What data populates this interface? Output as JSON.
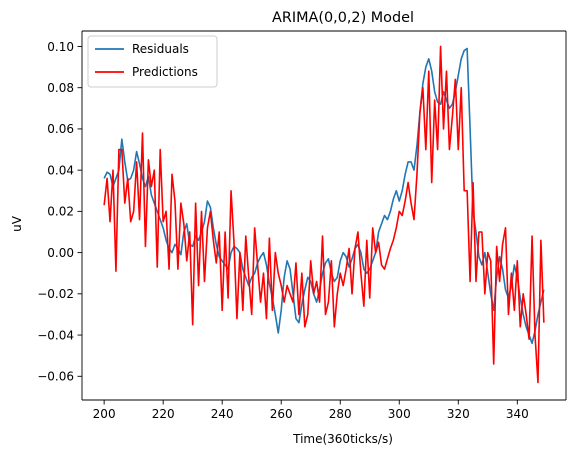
{
  "chart_data": {
    "type": "line",
    "title": "ARIMA(0,0,2) Model",
    "xlabel": "Time(360ticks/s)",
    "ylabel": "uV",
    "xlim": [
      192.5,
      356.5
    ],
    "ylim": [
      -0.0715,
      0.1075
    ],
    "xticks": [
      200,
      220,
      240,
      260,
      280,
      300,
      320,
      340
    ],
    "yticks": [
      -0.06,
      -0.04,
      -0.02,
      0.0,
      0.02,
      0.04,
      0.06,
      0.08,
      0.1
    ],
    "ytick_labels": [
      "−0.06",
      "−0.04",
      "−0.02",
      "0.00",
      "0.02",
      "0.04",
      "0.06",
      "0.08",
      "0.10"
    ],
    "grid": false,
    "legend_position": "top-left",
    "x_start": 200,
    "x_end": 349,
    "series": [
      {
        "name": "Residuals",
        "color": "#1f77b4",
        "values": [
          0.036,
          0.039,
          0.038,
          0.032,
          0.036,
          0.04,
          0.055,
          0.044,
          0.035,
          0.036,
          0.04,
          0.049,
          0.043,
          0.036,
          0.032,
          0.037,
          0.028,
          0.024,
          0.02,
          0.016,
          0.012,
          0.006,
          0.002,
          0.0,
          0.004,
          0.002,
          -0.001,
          0.01,
          0.014,
          0.004,
          0.003,
          0.008,
          0.006,
          0.01,
          0.015,
          0.025,
          0.022,
          0.012,
          0.004,
          -0.002,
          -0.004,
          -0.006,
          -0.008,
          0.0,
          0.003,
          0.002,
          0.0,
          -0.008,
          -0.012,
          -0.016,
          -0.012,
          -0.01,
          -0.005,
          -0.002,
          0.0,
          -0.006,
          -0.015,
          -0.022,
          -0.03,
          -0.039,
          -0.028,
          -0.012,
          -0.004,
          -0.008,
          -0.02,
          -0.032,
          -0.034,
          -0.025,
          -0.018,
          -0.012,
          -0.014,
          -0.02,
          -0.024,
          -0.018,
          -0.01,
          -0.005,
          -0.003,
          -0.01,
          -0.014,
          -0.012,
          -0.004,
          0.0,
          -0.002,
          -0.007,
          -0.003,
          0.002,
          0.004,
          0.0,
          -0.008,
          -0.01,
          -0.008,
          -0.004,
          0.0,
          0.01,
          0.014,
          0.018,
          0.016,
          0.02,
          0.026,
          0.03,
          0.025,
          0.03,
          0.038,
          0.044,
          0.044,
          0.04,
          0.052,
          0.068,
          0.082,
          0.09,
          0.094,
          0.088,
          0.078,
          0.073,
          0.072,
          0.078,
          0.074,
          0.07,
          0.072,
          0.078,
          0.086,
          0.094,
          0.098,
          0.099,
          0.06,
          0.02,
          0.01,
          -0.002,
          -0.006,
          0.0,
          -0.01,
          -0.02,
          -0.028,
          -0.012,
          -0.002,
          -0.008,
          -0.018,
          -0.022,
          -0.016,
          -0.006,
          -0.012,
          -0.022,
          -0.03,
          -0.036,
          -0.04,
          -0.044,
          -0.038,
          -0.03,
          -0.024,
          -0.018
        ]
      },
      {
        "name": "Predictions",
        "color": "#ff0000",
        "values": [
          0.023,
          0.036,
          0.015,
          0.04,
          -0.009,
          0.05,
          0.05,
          0.024,
          0.036,
          0.015,
          0.02,
          0.044,
          0.016,
          0.058,
          0.003,
          0.045,
          0.032,
          0.04,
          -0.007,
          0.05,
          0.015,
          0.02,
          -0.008,
          0.038,
          0.025,
          -0.008,
          0.024,
          0.014,
          -0.004,
          0.01,
          -0.035,
          0.024,
          -0.016,
          0.02,
          -0.014,
          0.012,
          0.02,
          0.006,
          -0.005,
          0.01,
          -0.028,
          0.01,
          -0.022,
          0.03,
          0.005,
          -0.032,
          0.0,
          -0.028,
          0.008,
          -0.012,
          -0.03,
          0.012,
          -0.006,
          -0.024,
          -0.01,
          -0.032,
          0.007,
          -0.028,
          0.0,
          -0.01,
          -0.016,
          -0.024,
          -0.016,
          -0.02,
          -0.024,
          -0.005,
          -0.03,
          -0.01,
          -0.036,
          -0.03,
          -0.004,
          -0.02,
          -0.014,
          -0.024,
          0.008,
          -0.03,
          -0.024,
          -0.004,
          -0.036,
          -0.02,
          -0.01,
          -0.016,
          -0.008,
          0.002,
          -0.02,
          0.002,
          0.01,
          -0.01,
          -0.026,
          0.006,
          -0.022,
          0.012,
          0.0,
          0.005,
          -0.006,
          -0.008,
          -0.003,
          0.002,
          0.006,
          0.012,
          0.02,
          0.018,
          0.025,
          0.034,
          0.024,
          0.016,
          0.038,
          0.068,
          0.08,
          0.05,
          0.088,
          0.034,
          0.074,
          0.05,
          0.1,
          0.06,
          0.088,
          0.05,
          0.066,
          0.084,
          0.05,
          0.08,
          0.03,
          0.03,
          -0.014,
          0.034,
          -0.014,
          0.01,
          0.01,
          -0.02,
          0.0,
          -0.004,
          -0.054,
          0.003,
          -0.014,
          0.004,
          0.012,
          -0.03,
          -0.01,
          -0.028,
          -0.004,
          -0.036,
          -0.02,
          -0.03,
          -0.042,
          0.008,
          -0.04,
          -0.063,
          0.006,
          -0.034
        ]
      }
    ]
  }
}
